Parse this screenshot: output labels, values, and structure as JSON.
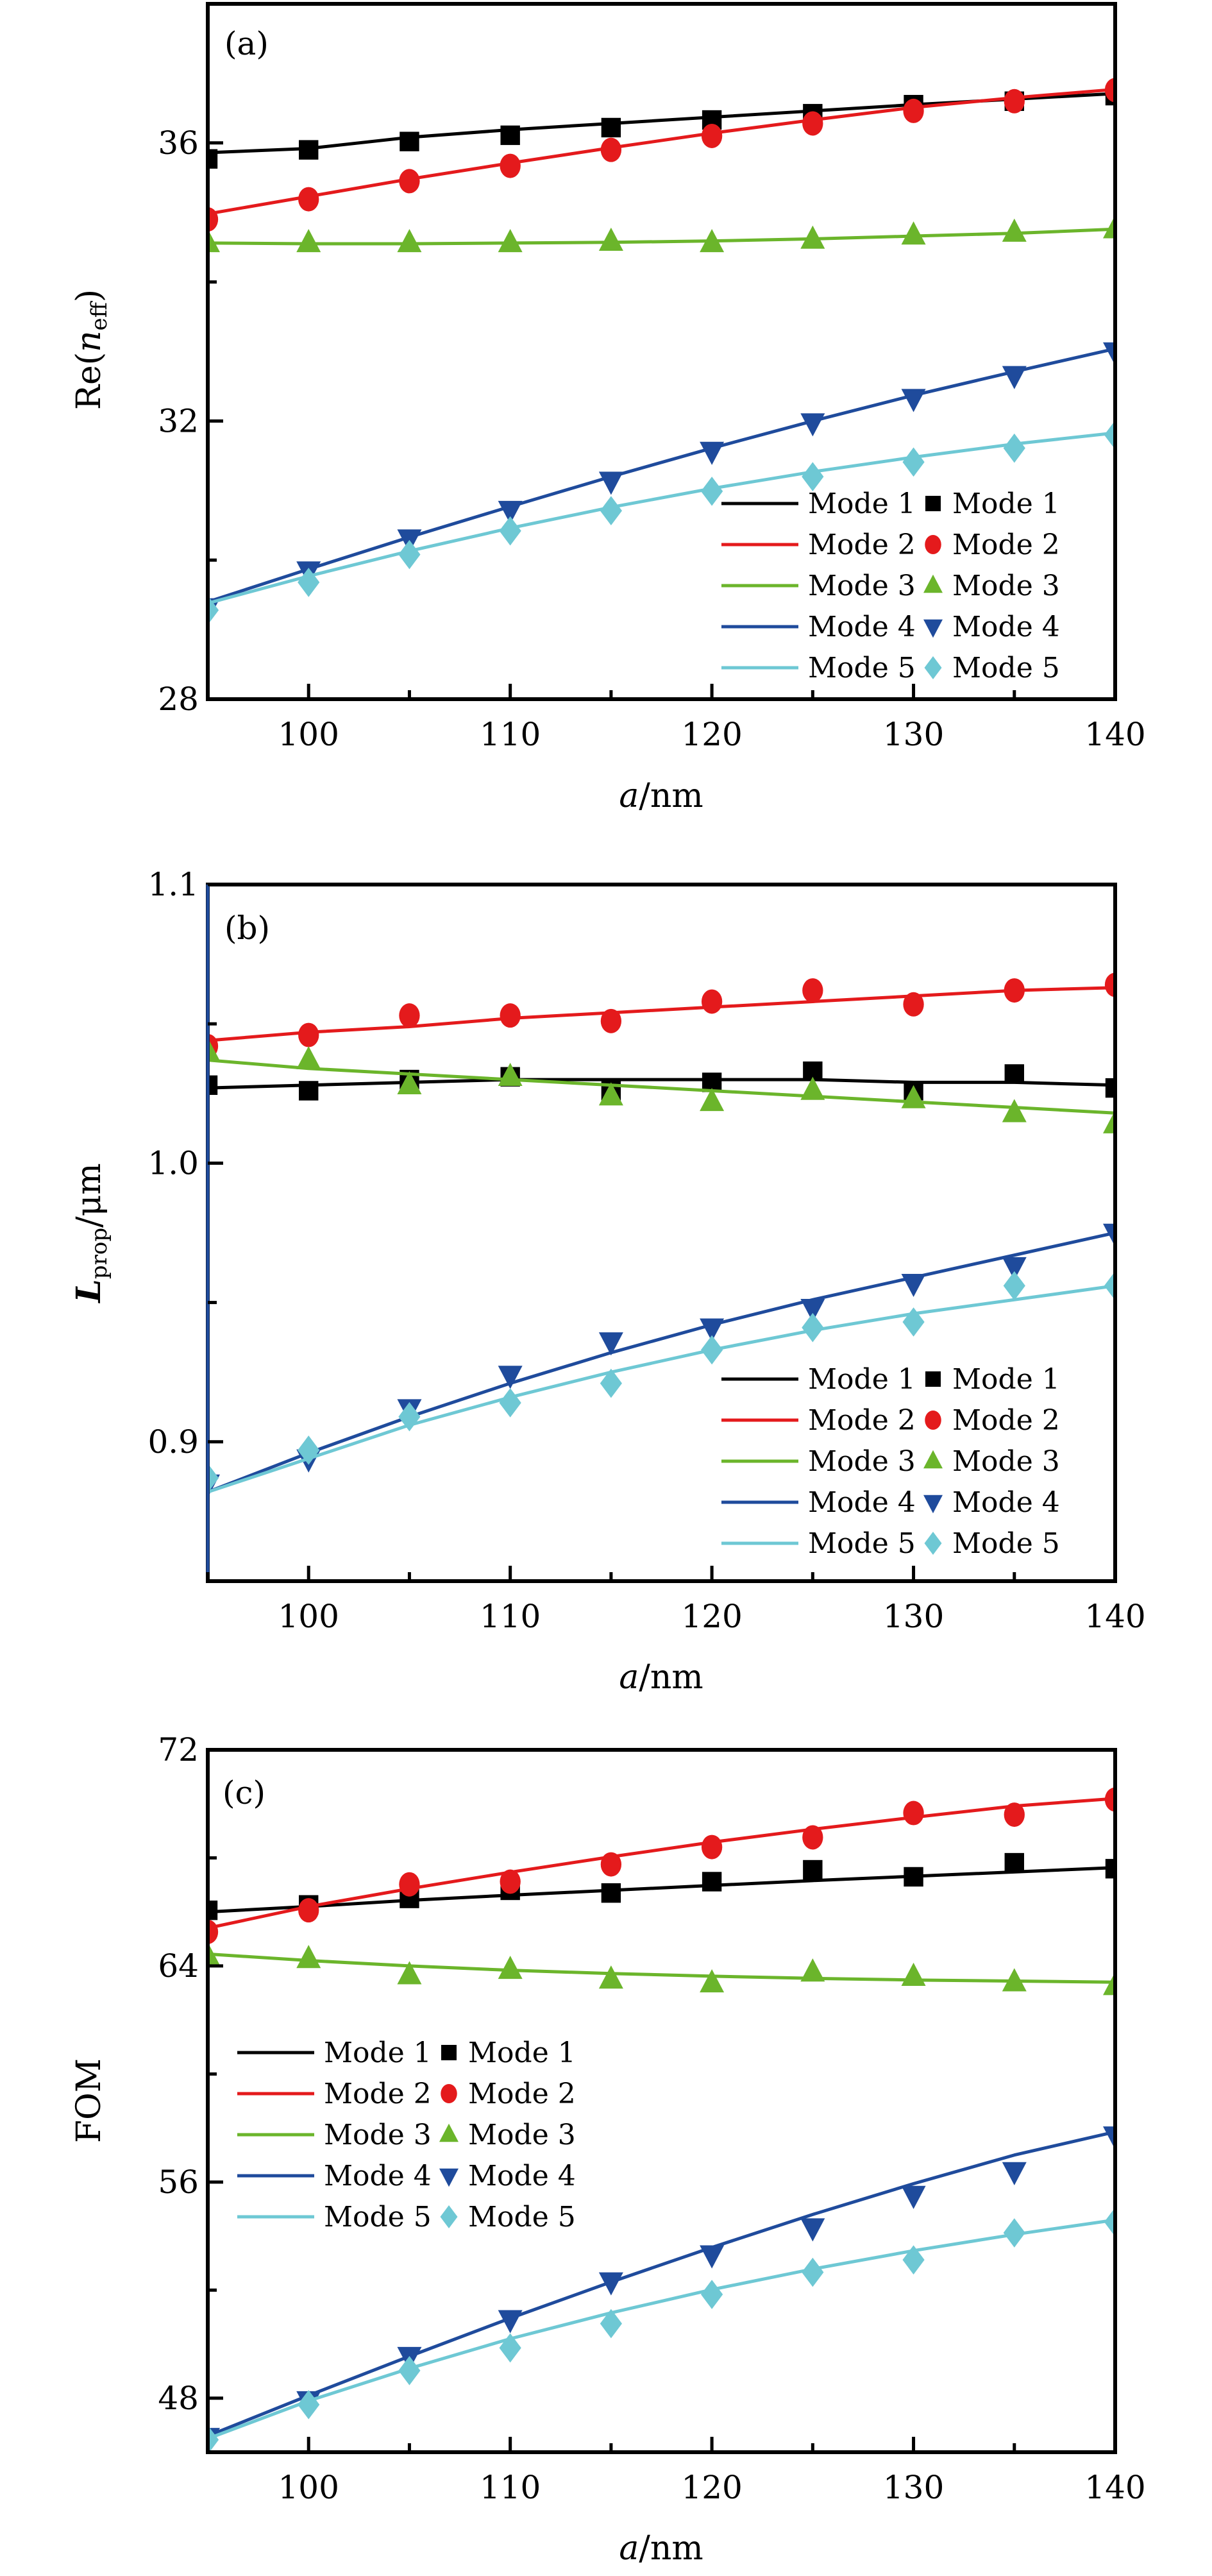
{
  "figure": {
    "legend_prefix_line": "Mode",
    "colors": {
      "mode1": "#000000",
      "mode2": "#e41a1c",
      "mode3": "#6bb52b",
      "mode4": "#1f4b9c",
      "mode5": "#6ec8d4"
    }
  },
  "chart_data": [
    {
      "type": "line",
      "panel_label": "(a)",
      "title": "",
      "xlabel": "a/nm",
      "ylabel": "Re(n_eff)",
      "ylabel_main": "Re(",
      "ylabel_italic": "n",
      "ylabel_sub": "eff",
      "ylabel_close": ")",
      "xlim": [
        95,
        140
      ],
      "ylim": [
        28,
        38
      ],
      "xticks": [
        100,
        110,
        120,
        130,
        140
      ],
      "yticks": [
        28,
        32,
        36
      ],
      "grid": false,
      "legend_placement": "bottom-right",
      "legend_entries": [
        "Mode 1",
        "Mode 2",
        "Mode 3",
        "Mode 4",
        "Mode 5"
      ],
      "x": [
        95,
        100,
        105,
        110,
        115,
        120,
        125,
        130,
        135,
        140
      ],
      "series": [
        {
          "name": "Mode 1",
          "marker": "square",
          "points": [
            35.77,
            35.9,
            36.02,
            36.11,
            36.22,
            36.33,
            36.42,
            36.55,
            36.6,
            36.68
          ],
          "fit": [
            35.86,
            35.92,
            36.08,
            36.19,
            36.28,
            36.37,
            36.46,
            36.55,
            36.63,
            36.71
          ]
        },
        {
          "name": "Mode 2",
          "marker": "circle",
          "points": [
            34.9,
            35.19,
            35.45,
            35.67,
            35.9,
            36.1,
            36.28,
            36.46,
            36.6,
            36.76
          ],
          "fit": [
            34.98,
            35.23,
            35.48,
            35.71,
            35.93,
            36.14,
            36.33,
            36.51,
            36.65,
            36.77
          ]
        },
        {
          "name": "Mode 3",
          "marker": "triangle-up",
          "points": [
            34.56,
            34.56,
            34.56,
            34.56,
            34.58,
            34.56,
            34.61,
            34.67,
            34.71,
            34.76
          ],
          "fit": [
            34.56,
            34.55,
            34.55,
            34.56,
            34.57,
            34.59,
            34.62,
            34.66,
            34.7,
            34.76
          ]
        },
        {
          "name": "Mode 4",
          "marker": "triangle-down",
          "points": [
            29.32,
            29.85,
            30.31,
            30.72,
            31.14,
            31.57,
            31.98,
            32.33,
            32.66,
            33.0
          ],
          "fit": [
            29.4,
            29.87,
            30.33,
            30.77,
            31.2,
            31.61,
            32.0,
            32.37,
            32.71,
            33.04
          ]
        },
        {
          "name": "Mode 5",
          "marker": "diamond",
          "points": [
            29.28,
            29.68,
            30.08,
            30.42,
            30.71,
            30.99,
            31.2,
            31.41,
            31.61,
            31.8
          ],
          "fit": [
            29.38,
            29.77,
            30.13,
            30.46,
            30.76,
            31.03,
            31.27,
            31.48,
            31.67,
            31.83
          ]
        }
      ]
    },
    {
      "type": "line",
      "panel_label": "(b)",
      "title": "",
      "xlabel": "a/nm",
      "ylabel": "L_prop/μm",
      "ylabel_italic": "L",
      "ylabel_sub": "prop",
      "ylabel_rest": "/μm",
      "xlim": [
        95,
        140
      ],
      "ylim": [
        0.85,
        1.1
      ],
      "xticks": [
        100,
        110,
        120,
        130,
        140
      ],
      "yticks": [
        0.9,
        1.0,
        1.1
      ],
      "ytick_labels": [
        "0.9",
        "1.0",
        "1.1"
      ],
      "grid": false,
      "legend_placement": "bottom-right",
      "legend_entries": [
        "Mode 1",
        "Mode 2",
        "Mode 3",
        "Mode 4",
        "Mode 5"
      ],
      "x": [
        95,
        100,
        105,
        110,
        115,
        120,
        125,
        130,
        135,
        140
      ],
      "series": [
        {
          "name": "Mode 1",
          "marker": "square",
          "points": [
            1.028,
            1.026,
            1.03,
            1.031,
            1.026,
            1.029,
            1.033,
            1.026,
            1.032,
            1.027
          ],
          "fit": [
            1.027,
            1.028,
            1.029,
            1.03,
            1.03,
            1.03,
            1.03,
            1.029,
            1.029,
            1.028
          ]
        },
        {
          "name": "Mode 2",
          "marker": "circle",
          "points": [
            1.042,
            1.046,
            1.053,
            1.053,
            1.051,
            1.058,
            1.062,
            1.057,
            1.062,
            1.064
          ],
          "fit": [
            1.044,
            1.047,
            1.049,
            1.052,
            1.054,
            1.056,
            1.058,
            1.06,
            1.062,
            1.063
          ]
        },
        {
          "name": "Mode 3",
          "marker": "triangle-up",
          "points": [
            1.04,
            1.037,
            1.028,
            1.031,
            1.024,
            1.022,
            1.026,
            1.023,
            1.018,
            1.014
          ],
          "fit": [
            1.037,
            1.034,
            1.032,
            1.03,
            1.028,
            1.026,
            1.024,
            1.022,
            1.02,
            1.018
          ]
        },
        {
          "name": "Mode 4",
          "marker": "triangle-down",
          "points": [
            0.885,
            0.894,
            0.912,
            0.924,
            0.936,
            0.941,
            0.948,
            0.957,
            0.963,
            0.975
          ],
          "fit": [
            0.882,
            0.896,
            0.909,
            0.921,
            0.932,
            0.942,
            0.951,
            0.959,
            0.967,
            0.975
          ]
        },
        {
          "name": "Mode 5",
          "marker": "diamond",
          "points": [
            0.887,
            0.897,
            0.909,
            0.914,
            0.921,
            0.933,
            0.941,
            0.943,
            0.956,
            0.956
          ],
          "fit": [
            0.882,
            0.894,
            0.906,
            0.916,
            0.925,
            0.933,
            0.94,
            0.946,
            0.951,
            0.956
          ]
        }
      ]
    },
    {
      "type": "line",
      "panel_label": "(c)",
      "title": "",
      "xlabel": "a/nm",
      "ylabel": "FOM",
      "xlim": [
        95,
        140
      ],
      "ylim": [
        46,
        72
      ],
      "xticks": [
        100,
        110,
        120,
        130,
        140
      ],
      "yticks": [
        48,
        56,
        64,
        72
      ],
      "grid": false,
      "legend_placement": "center-left",
      "legend_entries": [
        "Mode 1",
        "Mode 2",
        "Mode 3",
        "Mode 4",
        "Mode 5"
      ],
      "x": [
        95,
        100,
        105,
        110,
        115,
        120,
        125,
        130,
        135,
        140
      ],
      "series": [
        {
          "name": "Mode 1",
          "marker": "square",
          "points": [
            66.06,
            66.26,
            66.5,
            66.8,
            66.7,
            67.12,
            67.56,
            67.3,
            67.82,
            67.6
          ],
          "fit": [
            66.0,
            66.2,
            66.43,
            66.62,
            66.8,
            66.98,
            67.16,
            67.32,
            67.48,
            67.64
          ]
        },
        {
          "name": "Mode 2",
          "marker": "circle",
          "points": [
            65.26,
            66.06,
            67.02,
            67.12,
            67.76,
            68.4,
            68.76,
            69.66,
            69.6,
            70.16
          ],
          "fit": [
            65.4,
            66.2,
            66.86,
            67.47,
            68.04,
            68.58,
            69.06,
            69.5,
            69.92,
            70.2
          ]
        },
        {
          "name": "Mode 3",
          "marker": "triangle-up",
          "points": [
            64.36,
            64.26,
            63.66,
            63.86,
            63.5,
            63.36,
            63.76,
            63.6,
            63.4,
            63.26
          ],
          "fit": [
            64.44,
            64.2,
            64.0,
            63.84,
            63.72,
            63.62,
            63.54,
            63.48,
            63.44,
            63.4
          ]
        },
        {
          "name": "Mode 4",
          "marker": "triangle-down",
          "points": [
            46.56,
            47.92,
            49.56,
            50.92,
            52.32,
            53.32,
            54.32,
            55.52,
            56.4,
            57.72
          ],
          "fit": [
            46.6,
            48.1,
            49.55,
            50.96,
            52.3,
            53.58,
            54.8,
            55.94,
            57.0,
            57.86
          ]
        },
        {
          "name": "Mode 5",
          "marker": "diamond",
          "points": [
            46.46,
            47.76,
            49.02,
            49.86,
            50.76,
            51.84,
            52.66,
            53.12,
            54.12,
            54.52
          ],
          "fit": [
            46.5,
            47.9,
            49.1,
            50.2,
            51.16,
            52.02,
            52.78,
            53.46,
            54.06,
            54.6
          ]
        }
      ]
    }
  ]
}
